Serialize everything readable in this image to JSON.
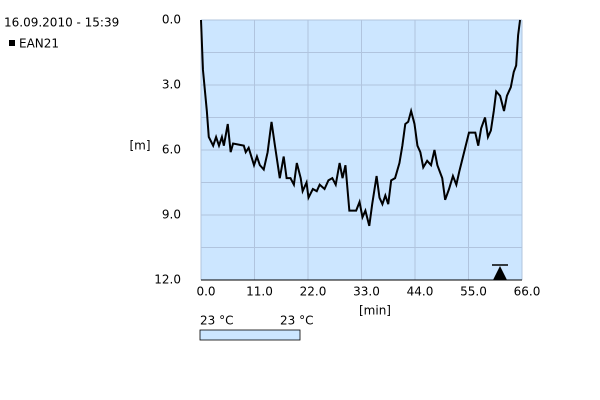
{
  "chart_data": {
    "type": "line",
    "title": "16.09.2010 - 15:39",
    "x_label": "[min]",
    "y_label": "[m]",
    "y_inverted": true,
    "xlim": [
      0,
      66
    ],
    "ylim": [
      0,
      12
    ],
    "xticks": [
      {
        "value": 0,
        "label": "0.0"
      },
      {
        "value": 11,
        "label": "11.0"
      },
      {
        "value": 22,
        "label": "22.0"
      },
      {
        "value": 33,
        "label": "33.0"
      },
      {
        "value": 44,
        "label": "44.0"
      },
      {
        "value": 55,
        "label": "55.0"
      },
      {
        "value": 66,
        "label": "66.0"
      }
    ],
    "yticks": [
      {
        "value": 0,
        "label": "0.0"
      },
      {
        "value": 3,
        "label": "3.0"
      },
      {
        "value": 6,
        "label": "6.0"
      },
      {
        "value": 9,
        "label": "9.0"
      },
      {
        "value": 12,
        "label": "12.0"
      }
    ],
    "y_minor_ticks": [
      1.5,
      4.5,
      7.5,
      10.5
    ],
    "grid": true,
    "plot_color": "#cce6ff",
    "series": [
      {
        "name": "EAN21",
        "color": "#000000",
        "x": [
          0,
          0.4,
          1.2,
          1.6,
          2.5,
          3.1,
          3.7,
          4.3,
          4.7,
          5.5,
          6.1,
          6.6,
          8.8,
          9.2,
          9.8,
          10.9,
          11.5,
          12.1,
          12.9,
          13.7,
          14.5,
          15.2,
          16.2,
          17.0,
          17.6,
          18.4,
          19.1,
          19.7,
          20.5,
          20.9,
          21.7,
          22.1,
          23.0,
          23.8,
          24.4,
          25.4,
          26.2,
          27.0,
          27.7,
          28.5,
          29.1,
          29.7,
          30.5,
          31.9,
          32.6,
          33.2,
          33.8,
          34.6,
          35.2,
          36.1,
          36.7,
          37.3,
          37.9,
          38.5,
          39.1,
          39.9,
          40.8,
          41.4,
          42.0,
          42.6,
          43.2,
          43.9,
          44.5,
          45.1,
          45.7,
          46.5,
          47.3,
          48.0,
          48.6,
          49.6,
          50.2,
          51.0,
          51.8,
          52.5,
          53.1,
          54.1,
          55.1,
          56.4,
          57.0,
          57.6,
          58.4,
          59.0,
          59.6,
          60.2,
          60.7,
          61.5,
          62.3,
          62.9,
          63.7,
          64.3,
          64.8,
          65.2,
          65.6
        ],
        "values": [
          0,
          2.3,
          4.2,
          5.4,
          5.8,
          5.4,
          5.8,
          5.4,
          5.8,
          4.8,
          6.1,
          5.7,
          5.8,
          6.1,
          5.9,
          6.7,
          6.3,
          6.7,
          6.9,
          6.1,
          4.7,
          5.8,
          7.3,
          6.3,
          7.3,
          7.3,
          7.6,
          6.6,
          7.3,
          7.9,
          7.5,
          8.2,
          7.8,
          7.9,
          7.6,
          7.8,
          7.4,
          7.3,
          7.6,
          6.6,
          7.3,
          6.7,
          8.8,
          8.8,
          8.4,
          9.1,
          8.8,
          9.5,
          8.5,
          7.2,
          8.2,
          8.5,
          8.1,
          8.5,
          7.4,
          7.3,
          6.6,
          5.8,
          4.8,
          4.7,
          4.2,
          4.8,
          5.8,
          6.1,
          6.8,
          6.5,
          6.7,
          6.0,
          6.7,
          7.3,
          8.3,
          7.8,
          7.2,
          7.6,
          7.0,
          6.1,
          5.2,
          5.2,
          5.8,
          5.0,
          4.5,
          5.4,
          5.1,
          4.2,
          3.3,
          3.5,
          4.2,
          3.5,
          3.1,
          2.4,
          2.1,
          0.7,
          0
        ]
      }
    ],
    "temperature_labels": [
      "23 °C",
      "23 °C"
    ]
  }
}
